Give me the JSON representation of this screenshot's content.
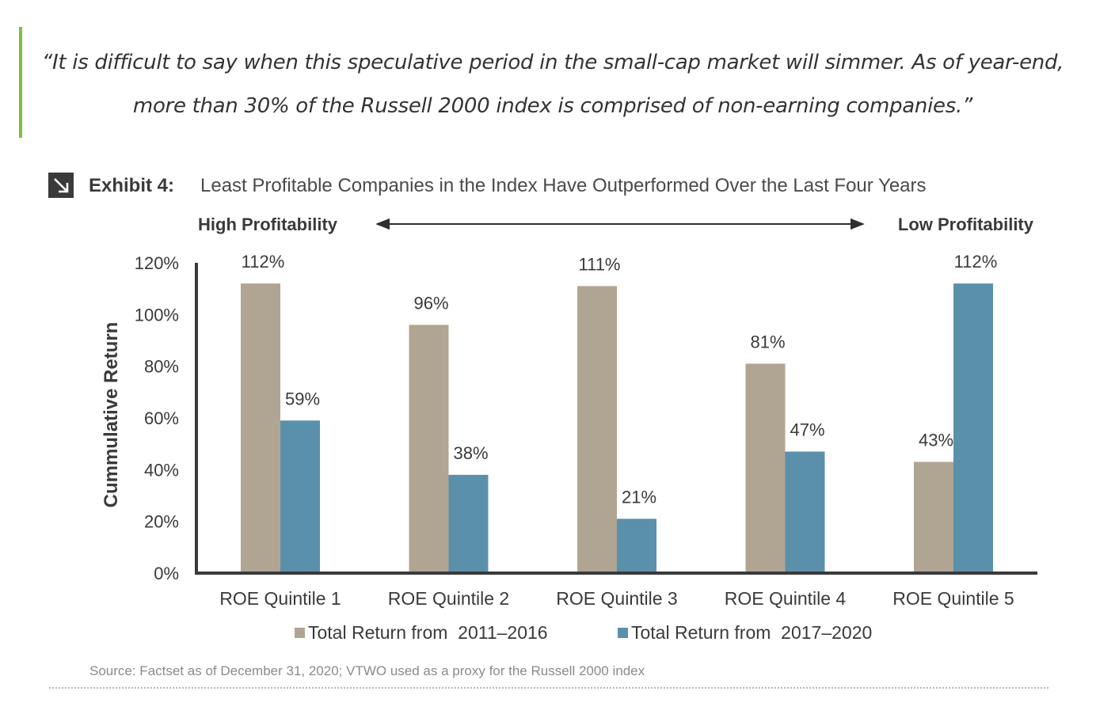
{
  "quote": {
    "text": "“It is difficult to say when this speculative period in the small-cap market will simmer. As of year-end, more than 30% of the Russell 2000 index is comprised of non-earning companies.”",
    "accent_color": "#7bc043"
  },
  "exhibit": {
    "icon": "arrow-down-right-icon",
    "label": "Exhibit 4:",
    "source": "Source: Factset as of December 31, 2020; VTWO used as a proxy for the Russell 2000 index",
    "scale": {
      "left_label": "High Profitability",
      "right_label": "Low Profitability"
    }
  },
  "chart_data": {
    "type": "bar",
    "title": "Least Profitable Companies in the Index Have Outperformed Over the Last Four Years",
    "ylabel": "Cummulative Return",
    "xlabel": "",
    "ylim": [
      0,
      120
    ],
    "yticks": [
      0,
      20,
      40,
      60,
      80,
      100,
      120
    ],
    "ytick_labels": [
      "0%",
      "20%",
      "40%",
      "60%",
      "80%",
      "100%",
      "120%"
    ],
    "categories": [
      "ROE Quintile 1",
      "ROE Quintile 2",
      "ROE Quintile 3",
      "ROE Quintile 4",
      "ROE Quintile 5"
    ],
    "series": [
      {
        "name": "Total Return from  2011–2016",
        "values": [
          112,
          96,
          111,
          81,
          43
        ],
        "labels": [
          "112%",
          "96%",
          "111%",
          "81%",
          "43%"
        ],
        "color": "#b0a592"
      },
      {
        "name": "Total Return from  2017–2020",
        "values": [
          59,
          38,
          21,
          47,
          112
        ],
        "labels": [
          "59%",
          "38%",
          "21%",
          "47%",
          "112%"
        ],
        "color": "#5b90ab"
      }
    ],
    "grid": false,
    "legend": "bottom-center"
  }
}
